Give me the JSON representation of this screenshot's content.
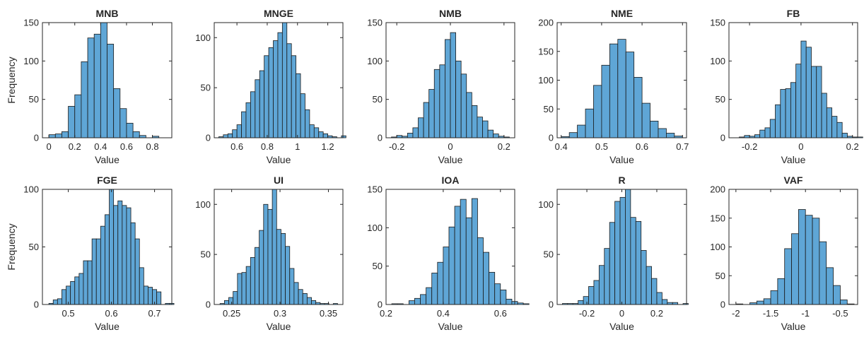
{
  "colors": {
    "bar_fill": "#5fa6d6",
    "bar_edge": "#1a1a1a",
    "axis": "#262626"
  },
  "chart_data": [
    {
      "type": "bar",
      "title": "MNB",
      "xlabel": "Value",
      "ylabel": "Frequency",
      "xlim": [
        -0.05,
        0.95
      ],
      "ylim": [
        0,
        150
      ],
      "xticks": [
        0,
        0.2,
        0.4,
        0.6,
        0.8
      ],
      "xticklabels": [
        "0",
        "0.2",
        "0.4",
        "0.6",
        "0.8"
      ],
      "yticks": [
        0,
        50,
        100,
        150
      ],
      "yticklabels": [
        "0",
        "50",
        "100",
        "150"
      ],
      "bin_start": 0.0,
      "bin_width": 0.05,
      "values": [
        4,
        5,
        8,
        41,
        56,
        99,
        130,
        135,
        153,
        122,
        64,
        38,
        19,
        8,
        3,
        0,
        2
      ]
    },
    {
      "type": "bar",
      "title": "MNGE",
      "xlabel": "Value",
      "ylabel": "",
      "xlim": [
        0.45,
        1.3
      ],
      "ylim": [
        0,
        115
      ],
      "xticks": [
        0.6,
        0.8,
        1,
        1.2
      ],
      "xticklabels": [
        "0.6",
        "0.8",
        "1",
        "1.2"
      ],
      "yticks": [
        0,
        50,
        100
      ],
      "yticklabels": [
        "0",
        "50",
        "100"
      ],
      "bin_start": 0.48,
      "bin_width": 0.03,
      "values": [
        1,
        3,
        4,
        8,
        13,
        26,
        35,
        46,
        58,
        67,
        82,
        90,
        97,
        105,
        118,
        94,
        82,
        64,
        44,
        28,
        13,
        10,
        6,
        4,
        2,
        1,
        0,
        2
      ]
    },
    {
      "type": "bar",
      "title": "NMB",
      "xlabel": "Value",
      "ylabel": "",
      "xlim": [
        -0.24,
        0.24
      ],
      "ylim": [
        0,
        150
      ],
      "xticks": [
        -0.2,
        0,
        0.2
      ],
      "xticklabels": [
        "-0.2",
        "0",
        "0.2"
      ],
      "yticks": [
        0,
        50,
        100,
        150
      ],
      "yticklabels": [
        "0",
        "50",
        "100",
        "150"
      ],
      "bin_start": -0.22,
      "bin_width": 0.02,
      "values": [
        1,
        3,
        2,
        6,
        13,
        26,
        46,
        63,
        89,
        95,
        128,
        137,
        100,
        83,
        59,
        42,
        27,
        22,
        10,
        5,
        2,
        1
      ]
    },
    {
      "type": "bar",
      "title": "NME",
      "xlabel": "Value",
      "ylabel": "",
      "xlim": [
        0.39,
        0.71
      ],
      "ylim": [
        0,
        200
      ],
      "xticks": [
        0.4,
        0.5,
        0.6,
        0.7
      ],
      "xticklabels": [
        "0.4",
        "0.5",
        "0.6",
        "0.7"
      ],
      "yticks": [
        0,
        50,
        100,
        150,
        200
      ],
      "yticklabels": [
        "0",
        "50",
        "100",
        "150",
        "200"
      ],
      "bin_start": 0.4,
      "bin_width": 0.02,
      "values": [
        2,
        9,
        22,
        50,
        91,
        126,
        163,
        171,
        149,
        105,
        60,
        29,
        16,
        8,
        3
      ]
    },
    {
      "type": "bar",
      "title": "FB",
      "xlabel": "Value",
      "ylabel": "",
      "xlim": [
        -0.28,
        0.22
      ],
      "ylim": [
        0,
        150
      ],
      "xticks": [
        -0.2,
        0,
        0.2
      ],
      "xticklabels": [
        "-0.2",
        "0",
        "0.2"
      ],
      "yticks": [
        0,
        50,
        100,
        150
      ],
      "yticklabels": [
        "0",
        "50",
        "100",
        "150"
      ],
      "bin_start": -0.24,
      "bin_width": 0.02,
      "values": [
        1,
        3,
        2,
        4,
        10,
        13,
        24,
        43,
        63,
        64,
        72,
        96,
        126,
        118,
        93,
        93,
        58,
        39,
        28,
        20,
        6,
        2,
        1,
        1,
        0
      ]
    },
    {
      "type": "bar",
      "title": "FGE",
      "xlabel": "Value",
      "ylabel": "Frequency",
      "xlim": [
        0.44,
        0.74
      ],
      "ylim": [
        0,
        100
      ],
      "xticks": [
        0.5,
        0.6,
        0.7
      ],
      "xticklabels": [
        "0.5",
        "0.6",
        "0.7"
      ],
      "yticks": [
        0,
        50,
        100
      ],
      "yticklabels": [
        "0",
        "50",
        "100"
      ],
      "bin_start": 0.455,
      "bin_width": 0.01,
      "values": [
        1,
        4,
        5,
        13,
        16,
        20,
        24,
        27,
        38,
        38,
        57,
        57,
        68,
        78,
        100,
        86,
        90,
        86,
        84,
        71,
        57,
        32,
        16,
        15,
        13,
        11,
        0,
        1,
        1
      ]
    },
    {
      "type": "bar",
      "title": "UI",
      "xlabel": "Value",
      "ylabel": "",
      "xlim": [
        0.232,
        0.365
      ],
      "ylim": [
        0,
        115
      ],
      "xticks": [
        0.25,
        0.3,
        0.35
      ],
      "xticklabels": [
        "0.25",
        "0.3",
        "0.35"
      ],
      "yticks": [
        0,
        50,
        100
      ],
      "yticklabels": [
        "0",
        "50",
        "100"
      ],
      "bin_start": 0.238,
      "bin_width": 0.0045,
      "values": [
        1,
        4,
        7,
        13,
        31,
        32,
        38,
        47,
        57,
        74,
        100,
        95,
        119,
        75,
        71,
        58,
        36,
        22,
        15,
        11,
        7,
        4,
        2,
        1,
        1,
        0,
        1,
        0
      ]
    },
    {
      "type": "bar",
      "title": "IOA",
      "xlabel": "Value",
      "ylabel": "",
      "xlim": [
        0.2,
        0.65
      ],
      "ylim": [
        0,
        150
      ],
      "xticks": [
        0.2,
        0.4,
        0.6
      ],
      "xticklabels": [
        "0.2",
        "0.4",
        "0.6"
      ],
      "yticks": [
        0,
        50,
        100,
        150
      ],
      "yticklabels": [
        "0",
        "50",
        "100",
        "150"
      ],
      "bin_start": 0.22,
      "bin_width": 0.02,
      "values": [
        1,
        1,
        0,
        5,
        8,
        13,
        22,
        41,
        55,
        75,
        101,
        128,
        137,
        113,
        138,
        87,
        68,
        42,
        27,
        19,
        7,
        4,
        2,
        1
      ]
    },
    {
      "type": "bar",
      "title": "R",
      "xlabel": "Value",
      "ylabel": "",
      "xlim": [
        -0.37,
        0.37
      ],
      "ylim": [
        0,
        115
      ],
      "xticks": [
        -0.2,
        0,
        0.2
      ],
      "xticklabels": [
        "-0.2",
        "0",
        "0.2"
      ],
      "yticks": [
        0,
        50,
        100
      ],
      "yticklabels": [
        "0",
        "50",
        "100"
      ],
      "bin_start": -0.34,
      "bin_width": 0.03,
      "values": [
        1,
        1,
        1,
        4,
        8,
        18,
        24,
        39,
        56,
        82,
        103,
        107,
        117,
        87,
        83,
        54,
        38,
        26,
        12,
        5,
        2,
        2,
        0,
        1
      ]
    },
    {
      "type": "bar",
      "title": "VAF",
      "xlabel": "Value",
      "ylabel": "",
      "xlim": [
        -2.1,
        -0.25
      ],
      "ylim": [
        0,
        200
      ],
      "xticks": [
        -2,
        -1.5,
        -1,
        -0.5
      ],
      "xticklabels": [
        "-2",
        "-1.5",
        "-1",
        "-0.5"
      ],
      "yticks": [
        0,
        50,
        100,
        150,
        200
      ],
      "yticklabels": [
        "0",
        "50",
        "100",
        "150",
        "200"
      ],
      "bin_start": -2.0,
      "bin_width": 0.1,
      "values": [
        1,
        0,
        3,
        6,
        10,
        24,
        45,
        97,
        123,
        165,
        155,
        150,
        109,
        64,
        33,
        8,
        1
      ]
    }
  ]
}
